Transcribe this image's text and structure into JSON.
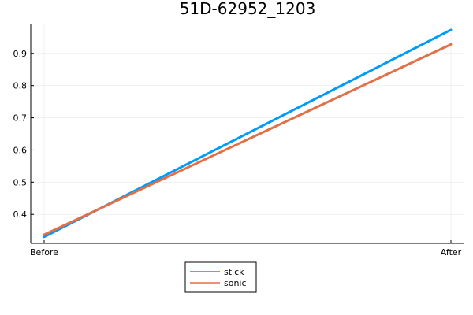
{
  "chart_data": {
    "type": "line",
    "title": "51D-62952_1203",
    "xlabel": "",
    "ylabel": "",
    "categories": [
      "Before",
      "After"
    ],
    "ylim": [
      0.31,
      0.99
    ],
    "yticks": [
      "0.4",
      "0.5",
      "0.6",
      "0.7",
      "0.8",
      "0.9"
    ],
    "grid": true,
    "legend": "bottom-left-outside",
    "series": [
      {
        "name": "stick",
        "values": [
          0.33,
          0.973
        ],
        "color": "#009af9"
      },
      {
        "name": "sonic",
        "values": [
          0.337,
          0.928
        ],
        "color": "#e26f46"
      }
    ]
  }
}
